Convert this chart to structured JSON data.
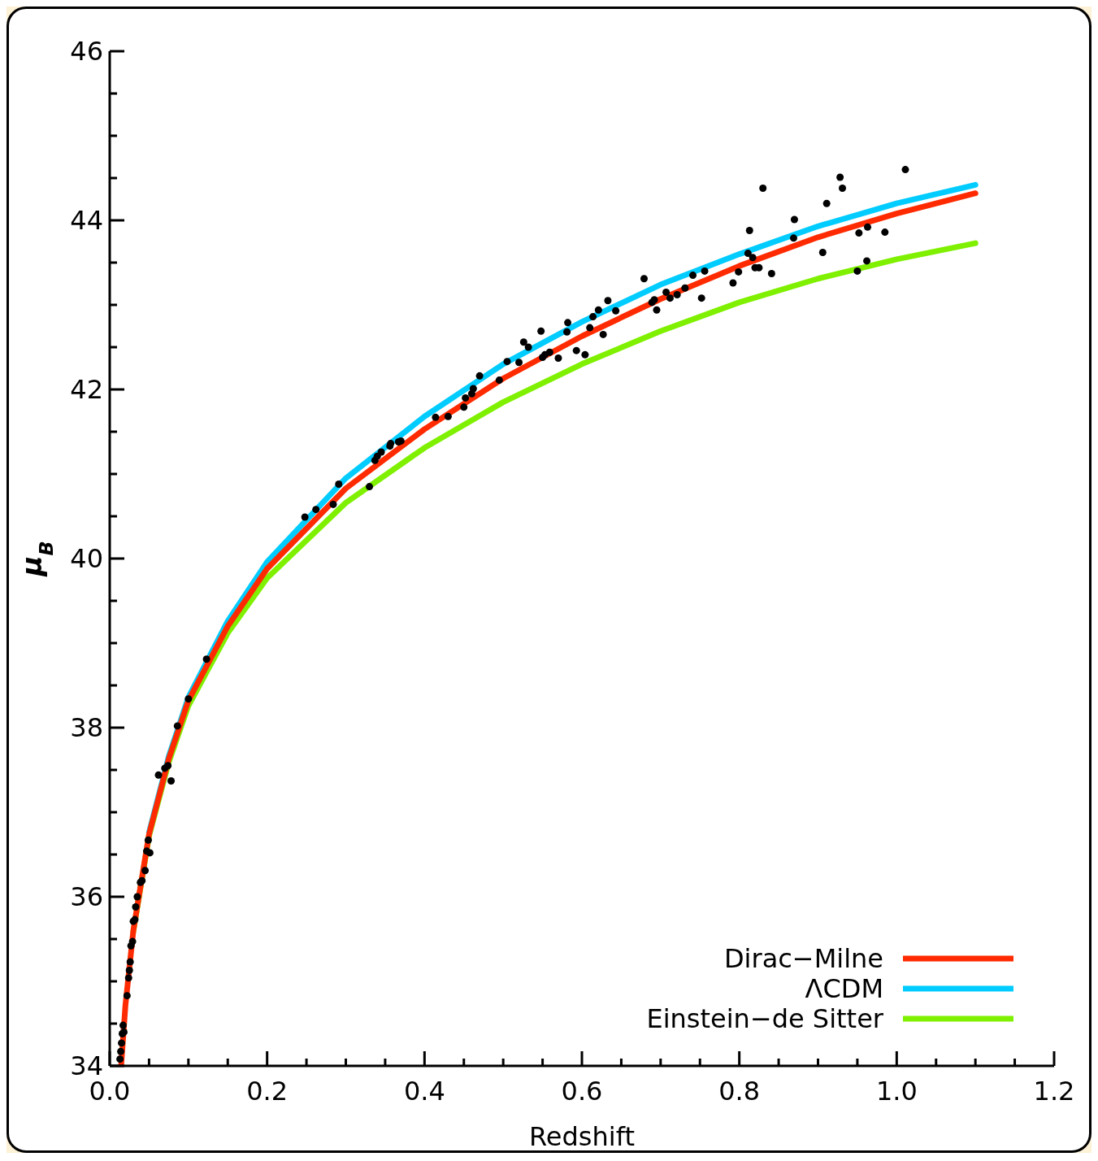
{
  "chart_data": {
    "type": "line",
    "xlabel": "Redshift",
    "ylabel": "μ$_{B}$",
    "xlim": [
      0,
      1.2
    ],
    "ylim": [
      34,
      46
    ],
    "xticks": [
      {
        "value": 0,
        "label": "0.0"
      },
      {
        "value": 0.05,
        "label": null
      },
      {
        "value": 0.1,
        "label": null
      },
      {
        "value": 0.15,
        "label": null
      },
      {
        "value": 0.2,
        "label": "0.2"
      },
      {
        "value": 0.25,
        "label": null
      },
      {
        "value": 0.3,
        "label": null
      },
      {
        "value": 0.35,
        "label": null
      },
      {
        "value": 0.4,
        "label": "0.4"
      },
      {
        "value": 0.45,
        "label": null
      },
      {
        "value": 0.5,
        "label": null
      },
      {
        "value": 0.55,
        "label": null
      },
      {
        "value": 0.6,
        "label": "0.6"
      },
      {
        "value": 0.65,
        "label": null
      },
      {
        "value": 0.7,
        "label": null
      },
      {
        "value": 0.75,
        "label": null
      },
      {
        "value": 0.8,
        "label": "0.8"
      },
      {
        "value": 0.85,
        "label": null
      },
      {
        "value": 0.9,
        "label": null
      },
      {
        "value": 0.95,
        "label": null
      },
      {
        "value": 1.0,
        "label": "1.0"
      },
      {
        "value": 1.05,
        "label": null
      },
      {
        "value": 1.1,
        "label": null
      },
      {
        "value": 1.15,
        "label": null
      },
      {
        "value": 1.2,
        "label": "1.2"
      }
    ],
    "yticks": [
      34,
      {
        "value": 34.5,
        "label": null
      },
      {
        "value": 35,
        "label": null
      },
      {
        "value": 35.5,
        "label": null
      },
      36,
      {
        "value": 36.5,
        "label": null
      },
      {
        "value": 37,
        "label": null
      },
      {
        "value": 37.5,
        "label": null
      },
      38,
      {
        "value": 38.5,
        "label": null
      },
      {
        "value": 39,
        "label": null
      },
      {
        "value": 39.5,
        "label": null
      },
      40,
      {
        "value": 40.5,
        "label": null
      },
      {
        "value": 41,
        "label": null
      },
      {
        "value": 41.5,
        "label": null
      },
      42,
      {
        "value": 42.5,
        "label": null
      },
      {
        "value": 43,
        "label": null
      },
      {
        "value": 43.5,
        "label": null
      },
      44,
      {
        "value": 44.5,
        "label": null
      },
      {
        "value": 45,
        "label": null
      },
      {
        "value": 45.5,
        "label": null
      },
      46
    ],
    "legend": "bottom right",
    "line_style": "solid",
    "series": [
      {
        "name": "Dirac−Milne",
        "color": "#ff2a00",
        "x": [
          0.0145,
          0.02,
          0.03,
          0.05,
          0.075,
          0.1,
          0.15,
          0.2,
          0.3,
          0.4,
          0.5,
          0.6,
          0.7,
          0.8,
          0.9,
          1.0,
          1.1
        ],
        "values": [
          34.0,
          34.72,
          35.6,
          36.74,
          37.63,
          38.32,
          39.2,
          39.88,
          40.83,
          41.53,
          42.13,
          42.63,
          43.07,
          43.46,
          43.8,
          44.08,
          44.32
        ]
      },
      {
        "name": "ΛCDM",
        "color": "#00ccff",
        "x": [
          0.05,
          0.075,
          0.1,
          0.15,
          0.2,
          0.3,
          0.4,
          0.5,
          0.6,
          0.7,
          0.8,
          0.9,
          1.0,
          1.1
        ],
        "values": [
          36.76,
          37.66,
          38.36,
          39.26,
          39.96,
          40.95,
          41.68,
          42.3,
          42.8,
          43.24,
          43.6,
          43.93,
          44.2,
          44.42
        ]
      },
      {
        "name": "Einstein−de Sitter",
        "color": "#7ff000",
        "x": [
          0.03,
          0.05,
          0.075,
          0.1,
          0.15,
          0.2,
          0.3,
          0.4,
          0.5,
          0.6,
          0.7,
          0.8,
          0.9,
          1.0,
          1.1
        ],
        "values": [
          35.59,
          36.72,
          37.59,
          38.26,
          39.12,
          39.77,
          40.66,
          41.31,
          41.85,
          42.3,
          42.69,
          43.03,
          43.31,
          43.54,
          43.73
        ]
      },
      {
        "type": "scatter",
        "color": "#000000",
        "marker": "circle",
        "x": [
          0.013,
          0.014,
          0.015,
          0.016,
          0.017,
          0.018,
          0.022,
          0.024,
          0.025,
          0.026,
          0.027,
          0.029,
          0.03,
          0.032,
          0.033,
          0.035,
          0.039,
          0.041,
          0.045,
          0.047,
          0.049,
          0.051,
          0.062,
          0.07,
          0.074,
          0.078,
          0.086,
          0.1,
          0.123,
          0.248,
          0.262,
          0.284,
          0.291,
          0.33,
          0.337,
          0.34,
          0.345,
          0.356,
          0.357,
          0.367,
          0.37,
          0.414,
          0.43,
          0.45,
          0.452,
          0.46,
          0.462,
          0.47,
          0.495,
          0.505,
          0.52,
          0.526,
          0.532,
          0.548,
          0.55,
          0.553,
          0.559,
          0.57,
          0.581,
          0.582,
          0.593,
          0.604,
          0.61,
          0.614,
          0.621,
          0.627,
          0.633,
          0.643,
          0.679,
          0.689,
          0.692,
          0.695,
          0.707,
          0.712,
          0.721,
          0.731,
          0.741,
          0.752,
          0.756,
          0.792,
          0.799,
          0.811,
          0.813,
          0.817,
          0.82,
          0.825,
          0.83,
          0.841,
          0.869,
          0.87,
          0.906,
          0.911,
          0.928,
          0.931,
          0.95,
          0.952,
          0.962,
          0.963,
          0.985,
          1.011
        ],
        "values": [
          34.08,
          34.17,
          34.27,
          34.38,
          34.48,
          34.4,
          34.83,
          35.04,
          35.13,
          35.23,
          35.42,
          35.47,
          35.71,
          35.73,
          35.88,
          36.0,
          36.17,
          36.19,
          36.31,
          36.54,
          36.67,
          36.52,
          37.44,
          37.52,
          37.55,
          37.37,
          38.02,
          38.34,
          38.81,
          40.49,
          40.58,
          40.64,
          40.88,
          40.85,
          41.16,
          41.21,
          41.26,
          41.33,
          41.36,
          41.38,
          41.39,
          41.67,
          41.68,
          41.79,
          41.9,
          41.95,
          42.01,
          42.16,
          42.11,
          42.33,
          42.32,
          42.56,
          42.5,
          42.69,
          42.38,
          42.41,
          42.44,
          42.37,
          42.68,
          42.79,
          42.46,
          42.41,
          42.73,
          42.86,
          42.94,
          42.65,
          43.05,
          42.93,
          43.31,
          43.03,
          43.06,
          42.94,
          43.15,
          43.08,
          43.12,
          43.2,
          43.35,
          43.08,
          43.4,
          43.26,
          43.39,
          43.61,
          43.88,
          43.56,
          43.44,
          43.44,
          44.38,
          43.37,
          43.79,
          44.01,
          43.62,
          44.2,
          44.51,
          44.38,
          43.4,
          43.85,
          43.52,
          43.92,
          43.86,
          44.6
        ]
      }
    ]
  }
}
